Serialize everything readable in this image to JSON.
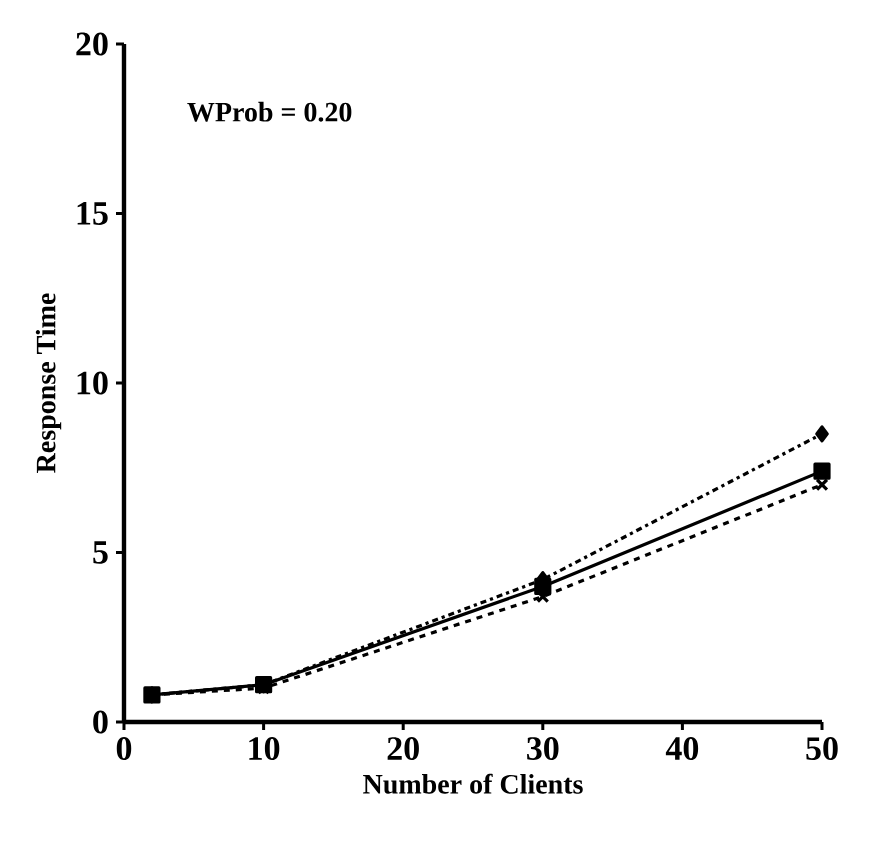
{
  "chart_data": {
    "type": "line",
    "xlabel": "Number of Clients",
    "ylabel": "Response Time",
    "annotations": [
      "WProb = 0.20"
    ],
    "x": [
      2,
      10,
      30,
      50
    ],
    "series": [
      {
        "color": "#000000",
        "values": [
          0.8,
          1.1,
          4.0,
          7.4
        ],
        "marker": "square",
        "line_style": "solid"
      },
      {
        "color": "#000000",
        "values": [
          0.8,
          1.1,
          4.2,
          8.5
        ],
        "marker": "diamond",
        "line_style": "dashdot"
      },
      {
        "color": "#000000",
        "values": [
          0.8,
          1.0,
          3.7,
          7.0
        ],
        "marker": "cross",
        "line_style": "dashed"
      }
    ],
    "xlim": [
      0,
      50
    ],
    "ylim": [
      0,
      20
    ],
    "xticks": [
      0,
      10,
      20,
      30,
      40,
      50
    ],
    "yticks": [
      0,
      5,
      10,
      15,
      20
    ],
    "grid": false
  }
}
